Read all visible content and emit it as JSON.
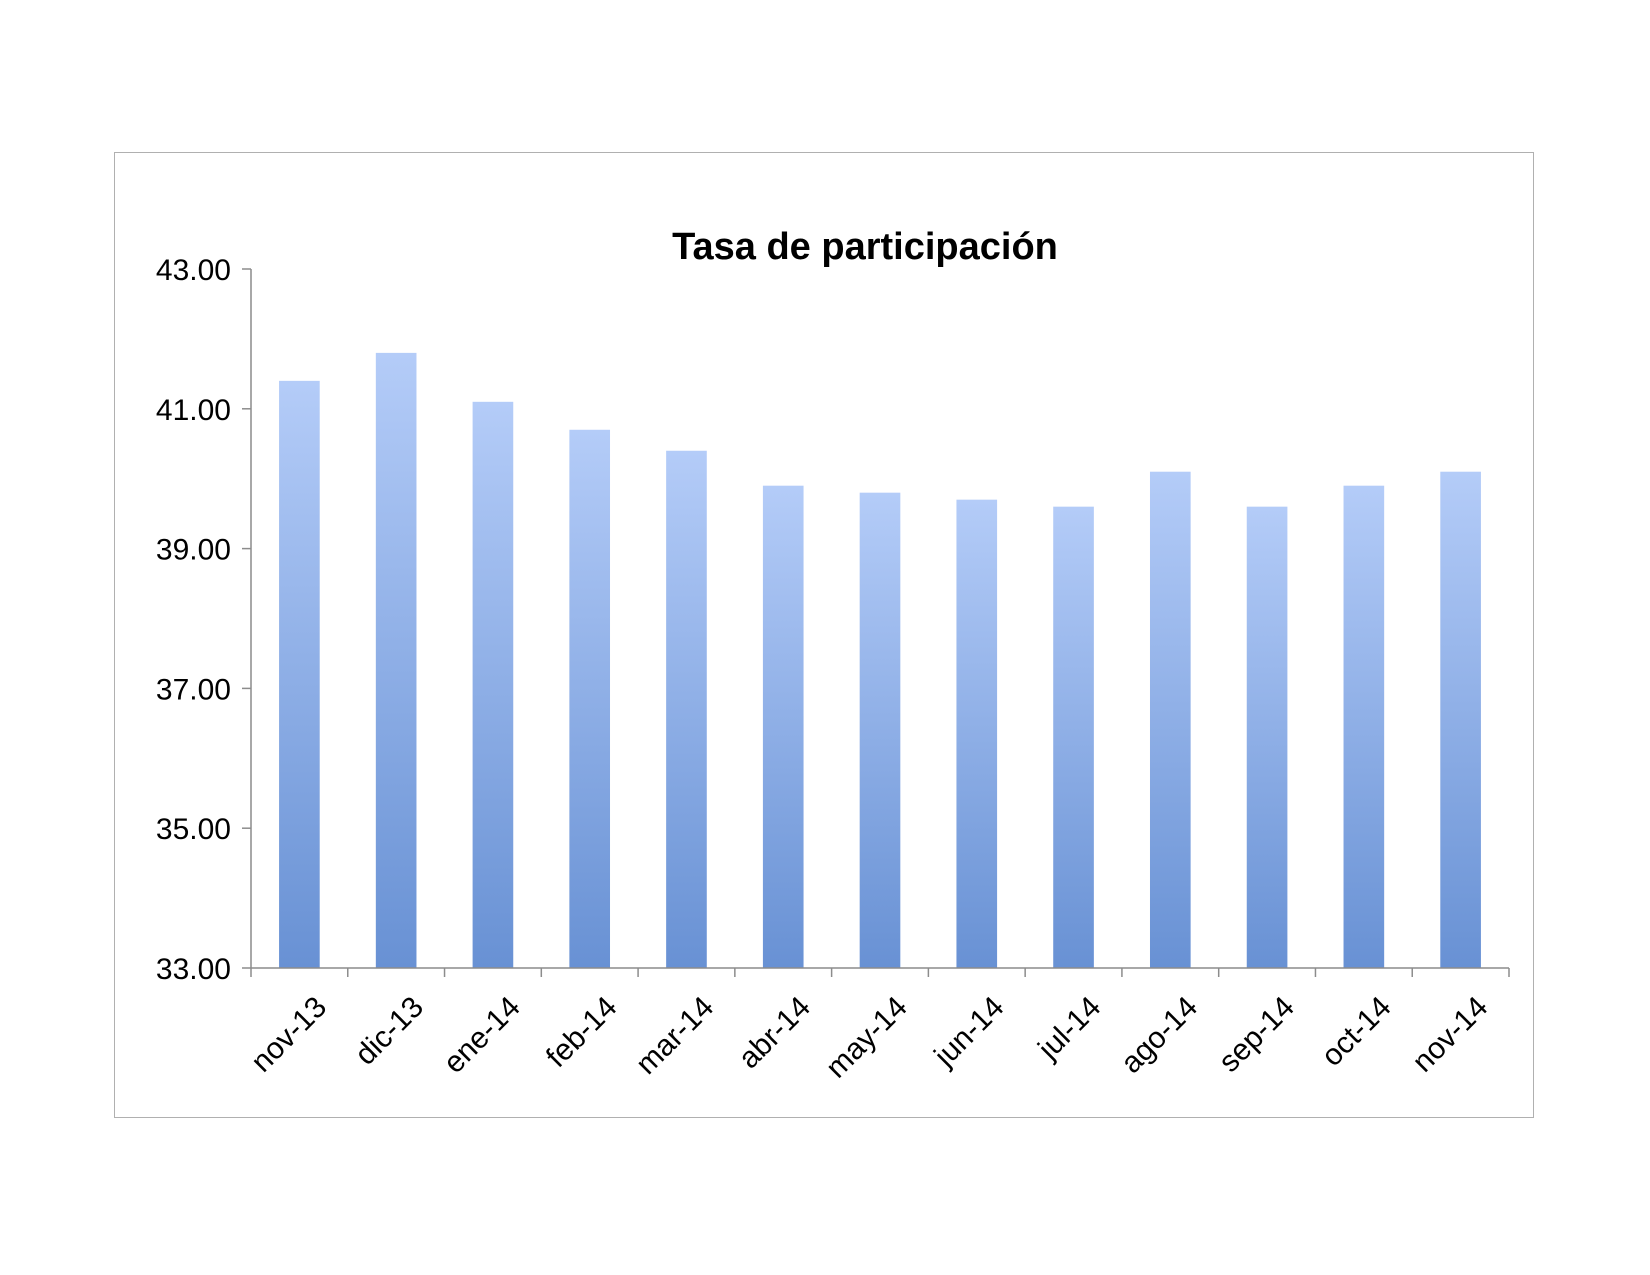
{
  "chart_data": {
    "type": "bar",
    "title": "Tasa de participación",
    "xlabel": "",
    "ylabel": "",
    "categories": [
      "nov-13",
      "dic-13",
      "ene-14",
      "feb-14",
      "mar-14",
      "abr-14",
      "may-14",
      "jun-14",
      "jul-14",
      "ago-14",
      "sep-14",
      "oct-14",
      "nov-14"
    ],
    "values": [
      41.4,
      41.8,
      41.1,
      40.7,
      40.4,
      39.9,
      39.8,
      39.7,
      39.6,
      40.1,
      39.6,
      39.9,
      40.1
    ],
    "ylim": [
      33,
      43
    ],
    "yticks": [
      "33.00",
      "35.00",
      "37.00",
      "39.00",
      "41.00",
      "43.00"
    ],
    "grid": false,
    "legend": "none",
    "colors": {
      "bar_top": "#b4ccf8",
      "bar_bottom": "#6891d4",
      "axis": "#8c8c8c"
    }
  }
}
